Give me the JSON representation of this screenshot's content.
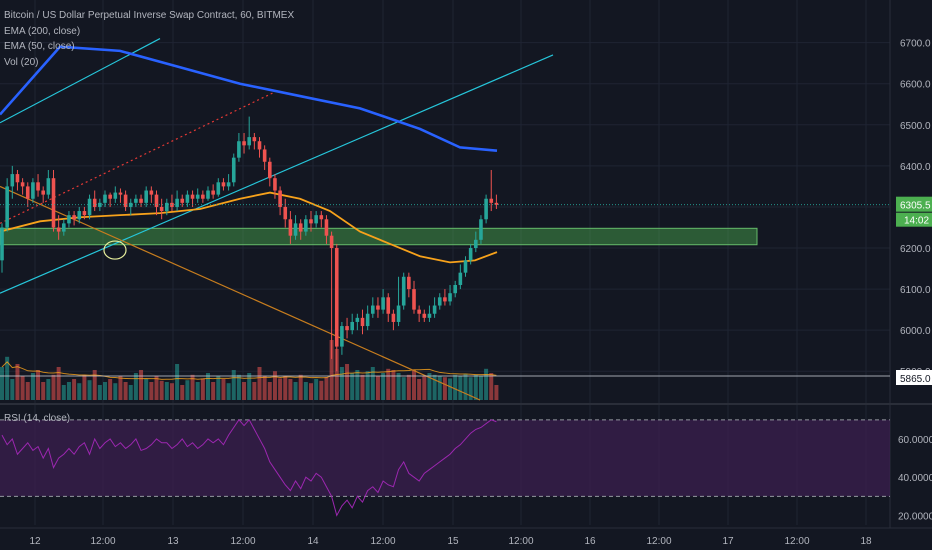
{
  "legend": {
    "title": "Bitcoin / US Dollar Perpetual Inverse Swap Contract, 60, BITMEX",
    "ema200": "EMA (200, close)",
    "ema50": "EMA (50, close)",
    "vol": "Vol (20)",
    "rsi": "RSI (14, close)"
  },
  "colors": {
    "background": "#131722",
    "up": "#26a69a",
    "down": "#ef5350",
    "ema200": "#2962ff",
    "ema50": "#f7a21b",
    "channel": "#26c6da",
    "trend": "#c77d1e",
    "zone": "#4caf50",
    "rsi_line": "#9c27b0",
    "rsi_band": "#3b1f4f",
    "price_tag": "#4caf50"
  },
  "price_axis": {
    "ticks": [
      "6700.0",
      "6600.0",
      "6500.0",
      "6400.0",
      "6300.0",
      "6200.0",
      "6100.0",
      "6000.0",
      "5900.0"
    ],
    "last_price": "6305.5",
    "countdown": "14:02",
    "volume_tag": "5865.0"
  },
  "rsi_axis": {
    "ticks": [
      "60.0000",
      "40.0000",
      "20.0000"
    ]
  },
  "time_axis": {
    "ticks": [
      "12",
      "12:00",
      "13",
      "12:00",
      "14",
      "12:00",
      "15",
      "12:00",
      "16",
      "12:00",
      "17",
      "12:00",
      "18"
    ]
  },
  "chart_data": {
    "type": "candlestick",
    "title": "Bitcoin / US Dollar Perpetual Inverse Swap Contract, 60, BITMEX",
    "interval": "60",
    "ylim": [
      5830,
      6760
    ],
    "candles": [
      [
        6170,
        6250,
        6140,
        6260
      ],
      [
        6250,
        6350,
        6240,
        6370
      ],
      [
        6350,
        6380,
        6320,
        6400
      ],
      [
        6380,
        6360,
        6340,
        6390
      ],
      [
        6360,
        6350,
        6330,
        6370
      ],
      [
        6350,
        6320,
        6300,
        6360
      ],
      [
        6320,
        6360,
        6310,
        6370
      ],
      [
        6360,
        6340,
        6325,
        6380
      ],
      [
        6340,
        6330,
        6310,
        6350
      ],
      [
        6330,
        6370,
        6320,
        6390
      ],
      [
        6370,
        6250,
        6240,
        6390
      ],
      [
        6250,
        6240,
        6220,
        6280
      ],
      [
        6240,
        6260,
        6230,
        6270
      ],
      [
        6260,
        6280,
        6250,
        6290
      ],
      [
        6280,
        6270,
        6255,
        6290
      ],
      [
        6270,
        6290,
        6260,
        6300
      ],
      [
        6290,
        6280,
        6270,
        6300
      ],
      [
        6280,
        6320,
        6270,
        6330
      ],
      [
        6320,
        6300,
        6290,
        6340
      ],
      [
        6300,
        6310,
        6290,
        6320
      ],
      [
        6310,
        6330,
        6300,
        6340
      ],
      [
        6330,
        6320,
        6300,
        6335
      ],
      [
        6320,
        6335,
        6310,
        6350
      ],
      [
        6335,
        6330,
        6310,
        6345
      ],
      [
        6330,
        6300,
        6290,
        6340
      ],
      [
        6300,
        6310,
        6280,
        6320
      ],
      [
        6310,
        6320,
        6300,
        6330
      ],
      [
        6320,
        6310,
        6300,
        6330
      ],
      [
        6310,
        6340,
        6300,
        6350
      ],
      [
        6340,
        6330,
        6310,
        6350
      ],
      [
        6330,
        6300,
        6280,
        6340
      ],
      [
        6300,
        6290,
        6270,
        6320
      ],
      [
        6290,
        6310,
        6280,
        6320
      ],
      [
        6310,
        6300,
        6290,
        6330
      ],
      [
        6300,
        6320,
        6290,
        6340
      ],
      [
        6320,
        6310,
        6300,
        6330
      ],
      [
        6310,
        6330,
        6300,
        6340
      ],
      [
        6330,
        6320,
        6300,
        6340
      ],
      [
        6320,
        6330,
        6310,
        6345
      ],
      [
        6330,
        6320,
        6310,
        6340
      ],
      [
        6320,
        6340,
        6315,
        6350
      ],
      [
        6340,
        6330,
        6320,
        6355
      ],
      [
        6330,
        6360,
        6325,
        6370
      ],
      [
        6360,
        6350,
        6340,
        6370
      ],
      [
        6350,
        6360,
        6340,
        6380
      ],
      [
        6360,
        6420,
        6350,
        6430
      ],
      [
        6420,
        6460,
        6410,
        6480
      ],
      [
        6460,
        6450,
        6430,
        6480
      ],
      [
        6450,
        6470,
        6440,
        6520
      ],
      [
        6470,
        6460,
        6440,
        6480
      ],
      [
        6460,
        6440,
        6420,
        6470
      ],
      [
        6440,
        6410,
        6390,
        6450
      ],
      [
        6410,
        6370,
        6350,
        6420
      ],
      [
        6370,
        6340,
        6320,
        6380
      ],
      [
        6340,
        6300,
        6280,
        6350
      ],
      [
        6300,
        6270,
        6250,
        6320
      ],
      [
        6270,
        6230,
        6210,
        6290
      ],
      [
        6230,
        6260,
        6220,
        6280
      ],
      [
        6260,
        6240,
        6220,
        6270
      ],
      [
        6240,
        6270,
        6230,
        6280
      ],
      [
        6270,
        6260,
        6240,
        6290
      ],
      [
        6260,
        6280,
        6250,
        6290
      ],
      [
        6280,
        6270,
        6250,
        6290
      ],
      [
        6270,
        6230,
        6210,
        6280
      ],
      [
        6230,
        6200,
        5930,
        6240
      ],
      [
        6200,
        5960,
        5900,
        6210
      ],
      [
        5960,
        6010,
        5940,
        6020
      ],
      [
        6010,
        6000,
        5980,
        6030
      ],
      [
        6000,
        6020,
        5990,
        6040
      ],
      [
        6020,
        6030,
        6000,
        6040
      ],
      [
        6030,
        6010,
        5990,
        6050
      ],
      [
        6010,
        6040,
        6000,
        6060
      ],
      [
        6040,
        6060,
        6030,
        6080
      ],
      [
        6060,
        6050,
        6030,
        6080
      ],
      [
        6050,
        6080,
        6040,
        6100
      ],
      [
        6080,
        6040,
        6020,
        6090
      ],
      [
        6040,
        6020,
        6000,
        6050
      ],
      [
        6020,
        6060,
        6010,
        6130
      ],
      [
        6060,
        6130,
        6050,
        6140
      ],
      [
        6130,
        6100,
        6080,
        6140
      ],
      [
        6100,
        6050,
        6040,
        6120
      ],
      [
        6050,
        6040,
        6020,
        6060
      ],
      [
        6040,
        6030,
        6020,
        6050
      ],
      [
        6030,
        6040,
        6020,
        6060
      ],
      [
        6040,
        6060,
        6030,
        6080
      ],
      [
        6060,
        6080,
        6050,
        6090
      ],
      [
        6080,
        6070,
        6060,
        6100
      ],
      [
        6070,
        6090,
        6060,
        6110
      ],
      [
        6090,
        6110,
        6080,
        6120
      ],
      [
        6110,
        6140,
        6100,
        6160
      ],
      [
        6140,
        6170,
        6130,
        6180
      ],
      [
        6170,
        6200,
        6160,
        6210
      ],
      [
        6200,
        6220,
        6190,
        6240
      ],
      [
        6220,
        6270,
        6210,
        6280
      ],
      [
        6270,
        6320,
        6260,
        6330
      ],
      [
        6320,
        6310,
        6290,
        6390
      ],
      [
        6310,
        6305,
        6295,
        6330
      ]
    ],
    "ema200": [
      [
        0,
        6525
      ],
      [
        60,
        6690
      ],
      [
        120,
        6680
      ],
      [
        180,
        6640
      ],
      [
        240,
        6600
      ],
      [
        300,
        6570
      ],
      [
        360,
        6540
      ],
      [
        420,
        6490
      ],
      [
        460,
        6445
      ],
      [
        497,
        6437
      ]
    ],
    "ema50": [
      [
        0,
        6240
      ],
      [
        40,
        6265
      ],
      [
        80,
        6275
      ],
      [
        120,
        6280
      ],
      [
        160,
        6285
      ],
      [
        200,
        6295
      ],
      [
        240,
        6320
      ],
      [
        270,
        6335
      ],
      [
        300,
        6320
      ],
      [
        330,
        6290
      ],
      [
        360,
        6240
      ],
      [
        390,
        6210
      ],
      [
        420,
        6180
      ],
      [
        450,
        6165
      ],
      [
        475,
        6170
      ],
      [
        497,
        6190
      ]
    ],
    "volume": [
      0.55,
      0.72,
      0.35,
      0.6,
      0.4,
      0.3,
      0.45,
      0.5,
      0.3,
      0.35,
      0.42,
      0.55,
      0.25,
      0.3,
      0.35,
      0.28,
      0.42,
      0.33,
      0.5,
      0.25,
      0.3,
      0.35,
      0.28,
      0.4,
      0.3,
      0.25,
      0.45,
      0.5,
      0.35,
      0.3,
      0.4,
      0.32,
      0.3,
      0.28,
      0.6,
      0.25,
      0.33,
      0.42,
      0.3,
      0.36,
      0.45,
      0.3,
      0.4,
      0.35,
      0.28,
      0.5,
      0.42,
      0.3,
      0.45,
      0.3,
      0.55,
      0.4,
      0.3,
      0.48,
      0.36,
      0.4,
      0.35,
      0.3,
      0.42,
      0.3,
      0.28,
      0.35,
      0.32,
      0.38,
      1.0,
      0.85,
      0.55,
      0.6,
      0.45,
      0.5,
      0.42,
      0.48,
      0.55,
      0.4,
      0.45,
      0.52,
      0.5,
      0.45,
      0.38,
      0.42,
      0.5,
      0.35,
      0.4,
      0.45,
      0.42,
      0.4,
      0.38,
      0.36,
      0.42,
      0.4,
      0.44,
      0.38,
      0.42,
      0.4,
      0.52,
      0.45,
      0.25
    ],
    "rsi_ylim": [
      15,
      72
    ],
    "rsi_levels": [
      70,
      30
    ],
    "rsi": [
      62,
      57,
      60,
      52,
      55,
      58,
      54,
      56,
      50,
      55,
      45,
      50,
      52,
      55,
      52,
      56,
      58,
      52,
      60,
      55,
      58,
      60,
      56,
      58,
      55,
      57,
      60,
      54,
      55,
      57,
      60,
      58,
      58,
      55,
      57,
      60,
      56,
      58,
      55,
      57,
      60,
      58,
      60,
      57,
      62,
      66,
      70,
      67,
      70,
      65,
      60,
      55,
      48,
      44,
      40,
      36,
      33,
      38,
      34,
      40,
      38,
      42,
      40,
      35,
      30,
      20,
      25,
      28,
      24,
      30,
      27,
      33,
      35,
      32,
      38,
      36,
      35,
      44,
      48,
      42,
      40,
      38,
      42,
      44,
      46,
      48,
      50,
      52,
      55,
      57,
      60,
      63,
      65,
      66,
      68,
      70,
      69
    ]
  },
  "zone": {
    "low": 6208,
    "high": 6248
  },
  "drawings": {
    "channel_upper": [
      [
        0,
        6505
      ],
      [
        160,
        6710
      ]
    ],
    "channel_lower": [
      [
        0,
        6090
      ],
      [
        553,
        6670
      ]
    ],
    "trend_line": [
      [
        0,
        6350
      ],
      [
        480,
        5830
      ]
    ],
    "dotted_line": [
      [
        0,
        6260
      ],
      [
        275,
        6580
      ]
    ],
    "ellipse": {
      "x": 115,
      "y": 6195
    }
  }
}
